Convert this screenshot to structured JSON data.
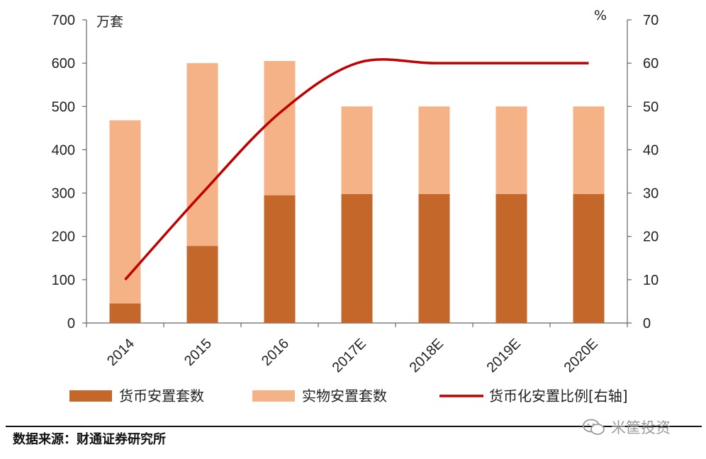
{
  "chart_data": {
    "type": "bar",
    "stacked": true,
    "categories": [
      "2014",
      "2015",
      "2016",
      "2017E",
      "2018E",
      "2019E",
      "2020E"
    ],
    "series": [
      {
        "name": "货币安置套数",
        "kind": "bar",
        "axis": "left",
        "color": "#C4672A",
        "values": [
          45,
          178,
          295,
          298,
          298,
          298,
          298
        ]
      },
      {
        "name": "实物安置套数",
        "kind": "bar",
        "axis": "left",
        "color": "#F4B286",
        "values": [
          423,
          422,
          310,
          202,
          202,
          202,
          202
        ]
      },
      {
        "name": "货币化安置比例[右轴]",
        "kind": "line",
        "axis": "right",
        "color": "#C00000",
        "values": [
          10,
          30,
          48.5,
          60,
          60,
          60,
          60
        ]
      }
    ],
    "left_axis": {
      "unit": "万套",
      "ylim": [
        0,
        700
      ],
      "ticks": [
        "0",
        "100",
        "200",
        "300",
        "400",
        "500",
        "600",
        "700"
      ]
    },
    "right_axis": {
      "unit": "%",
      "ylim": [
        0,
        70
      ],
      "ticks": [
        "0",
        "10",
        "20",
        "30",
        "40",
        "50",
        "60",
        "70"
      ]
    },
    "grid": false,
    "legend_position": "bottom"
  },
  "source": "数据来源：财通证券研究所",
  "watermark": "米筐投资"
}
